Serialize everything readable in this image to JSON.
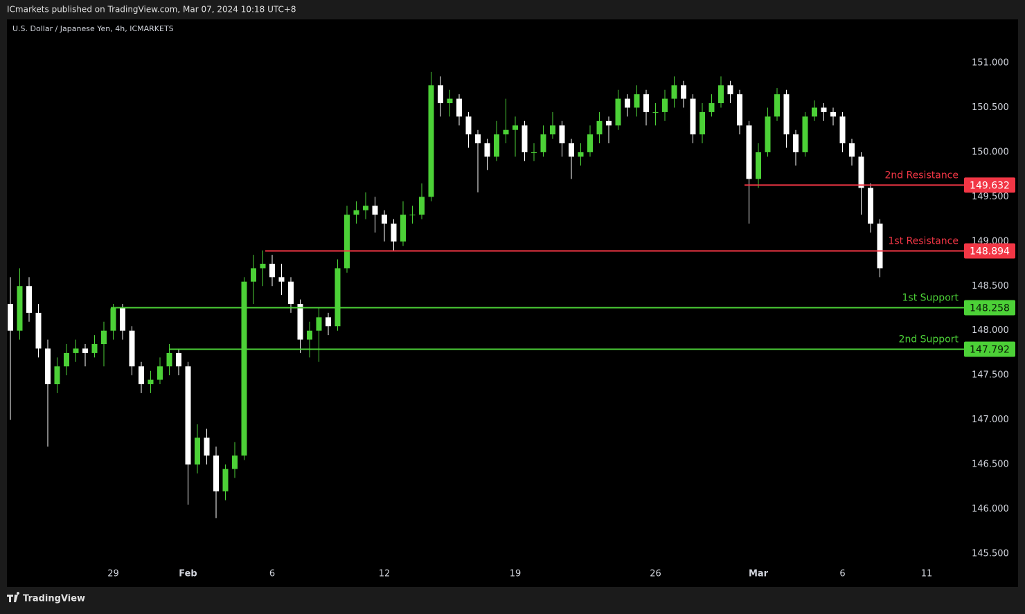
{
  "header": "ICmarkets published on TradingView.com, Mar 07, 2024 10:18 UTC+8",
  "footer": "TradingView",
  "chart_data": {
    "type": "candlestick",
    "title": "U.S. Dollar / Japanese Yen, 4h, ICMARKETS",
    "up_color": "#4cd137",
    "down_color": "#ffffff",
    "grid": false,
    "categories": [
      null,
      null,
      null,
      null,
      null,
      null,
      null,
      null,
      null,
      null,
      null,
      "29",
      null,
      null,
      null,
      null,
      null,
      null,
      null,
      "Feb",
      null,
      null,
      null,
      null,
      null,
      null,
      null,
      null,
      "6",
      null,
      null,
      null,
      null,
      null,
      null,
      null,
      null,
      null,
      null,
      null,
      "12",
      null,
      null,
      null,
      null,
      null,
      null,
      null,
      null,
      null,
      null,
      null,
      null,
      null,
      "19",
      null,
      null,
      null,
      null,
      null,
      null,
      null,
      null,
      null,
      null,
      null,
      null,
      null,
      null,
      "26",
      null,
      null,
      null,
      null,
      null,
      null,
      null,
      null,
      null,
      null,
      "Mar",
      null,
      null,
      null,
      null,
      null,
      null,
      null,
      null,
      "6",
      null,
      null,
      null,
      null,
      null,
      null,
      null,
      null,
      "11"
    ],
    "open": [
      148.3,
      148.0,
      148.5,
      148.2,
      147.8,
      147.4,
      147.6,
      147.75,
      147.8,
      147.75,
      147.85,
      148.0,
      148.25,
      148.0,
      147.6,
      147.4,
      147.45,
      147.6,
      147.75,
      147.6,
      146.5,
      146.8,
      146.6,
      146.2,
      146.45,
      146.6,
      148.55,
      148.7,
      148.75,
      148.6,
      148.55,
      148.3,
      147.9,
      148.0,
      148.15,
      148.05,
      148.7,
      149.3,
      149.35,
      149.4,
      149.3,
      149.2,
      149.0,
      149.3,
      149.3,
      149.5,
      150.75,
      150.55,
      150.6,
      150.4,
      150.2,
      150.1,
      149.95,
      150.2,
      150.25,
      150.3,
      150.0,
      150.0,
      150.2,
      150.3,
      150.1,
      149.95,
      150.0,
      150.2,
      150.35,
      150.3,
      150.6,
      150.5,
      150.65,
      150.45,
      150.45,
      150.6,
      150.75,
      150.6,
      150.2,
      150.45,
      150.55,
      150.75,
      150.65,
      150.3,
      149.7,
      150.0,
      150.4,
      150.65,
      150.2,
      150.0,
      150.4,
      150.5,
      150.45,
      150.4,
      150.1,
      149.95,
      149.6,
      149.2,
      null,
      null,
      null,
      null,
      null
    ],
    "high": [
      148.6,
      148.7,
      148.6,
      148.3,
      147.9,
      147.7,
      147.85,
      147.9,
      147.85,
      147.95,
      148.1,
      148.3,
      148.3,
      148.05,
      147.65,
      147.55,
      147.7,
      147.85,
      147.8,
      147.65,
      146.95,
      146.9,
      146.7,
      146.5,
      146.75,
      148.6,
      148.85,
      148.9,
      148.85,
      148.75,
      148.6,
      148.35,
      148.1,
      148.25,
      148.2,
      148.8,
      149.4,
      149.45,
      149.55,
      149.5,
      149.35,
      149.25,
      149.45,
      149.4,
      149.65,
      150.9,
      150.85,
      150.7,
      150.65,
      150.45,
      150.25,
      150.15,
      150.35,
      150.6,
      150.4,
      150.35,
      150.1,
      150.3,
      150.45,
      150.35,
      150.15,
      150.1,
      150.3,
      150.45,
      150.4,
      150.7,
      150.65,
      150.75,
      150.7,
      150.55,
      150.7,
      150.85,
      150.8,
      150.65,
      150.55,
      150.65,
      150.85,
      150.8,
      150.7,
      150.35,
      150.1,
      150.5,
      150.72,
      150.7,
      150.25,
      150.45,
      150.58,
      150.55,
      150.5,
      150.45,
      150.15,
      150.0,
      149.65,
      149.25,
      null,
      null,
      null,
      null,
      null
    ],
    "low": [
      147.0,
      147.9,
      148.1,
      147.7,
      146.7,
      147.3,
      147.5,
      147.65,
      147.6,
      147.7,
      147.6,
      147.9,
      147.9,
      147.5,
      147.3,
      147.3,
      147.4,
      147.5,
      147.5,
      146.05,
      146.4,
      146.5,
      145.9,
      146.1,
      146.35,
      146.55,
      148.3,
      148.5,
      148.5,
      148.4,
      148.2,
      147.75,
      147.7,
      147.65,
      147.95,
      148.0,
      148.65,
      149.2,
      149.25,
      149.1,
      149.0,
      148.9,
      148.95,
      149.2,
      149.25,
      149.45,
      150.4,
      150.4,
      150.3,
      150.05,
      149.55,
      149.8,
      149.9,
      150.1,
      149.95,
      149.9,
      149.9,
      149.95,
      150.15,
      149.95,
      149.7,
      149.85,
      149.95,
      150.1,
      150.1,
      150.25,
      150.4,
      150.4,
      150.3,
      150.3,
      150.35,
      150.5,
      150.5,
      150.1,
      150.1,
      150.4,
      150.5,
      150.55,
      150.2,
      149.2,
      149.6,
      149.95,
      150.35,
      150.05,
      149.85,
      149.95,
      150.35,
      150.35,
      150.3,
      150.0,
      149.85,
      149.3,
      149.1,
      148.6,
      null,
      null,
      null,
      null,
      null
    ],
    "close": [
      148.0,
      148.5,
      148.2,
      147.8,
      147.4,
      147.6,
      147.75,
      147.8,
      147.75,
      147.85,
      148.0,
      148.25,
      148.0,
      147.6,
      147.4,
      147.45,
      147.6,
      147.75,
      147.6,
      146.5,
      146.8,
      146.6,
      146.2,
      146.45,
      146.6,
      148.55,
      148.7,
      148.75,
      148.6,
      148.55,
      148.3,
      147.9,
      148.0,
      148.15,
      148.05,
      148.7,
      149.3,
      149.35,
      149.4,
      149.3,
      149.2,
      149.0,
      149.3,
      149.3,
      149.5,
      150.75,
      150.55,
      150.6,
      150.4,
      150.2,
      150.1,
      149.95,
      150.2,
      150.25,
      150.3,
      150.0,
      150.0,
      150.2,
      150.3,
      150.1,
      149.95,
      150.0,
      150.2,
      150.35,
      150.3,
      150.6,
      150.5,
      150.65,
      150.45,
      150.45,
      150.6,
      150.75,
      150.6,
      150.2,
      150.45,
      150.55,
      150.75,
      150.65,
      150.3,
      149.7,
      150.0,
      150.4,
      150.65,
      150.2,
      150.0,
      150.4,
      150.5,
      150.45,
      150.4,
      150.1,
      149.95,
      149.6,
      149.2,
      148.7,
      null,
      null,
      null,
      null,
      null
    ],
    "ylim": [
      145.383,
      151.489
    ],
    "yticks": [
      {
        "value": 145.5,
        "label": "145.500"
      },
      {
        "value": 146,
        "label": "146.000"
      },
      {
        "value": 146.5,
        "label": "146.500"
      },
      {
        "value": 147,
        "label": "147.000"
      },
      {
        "value": 147.5,
        "label": "147.500"
      },
      {
        "value": 148,
        "label": "148.000"
      },
      {
        "value": 148.5,
        "label": "148.500"
      },
      {
        "value": 149,
        "label": "149.000"
      },
      {
        "value": 149.5,
        "label": "149.500"
      },
      {
        "value": 150,
        "label": "150.000"
      },
      {
        "value": 150.5,
        "label": "150.500"
      },
      {
        "value": 151,
        "label": "151.000"
      }
    ],
    "levels": [
      {
        "name": "2nd Resistance",
        "value": 149.632,
        "color": "#f23645"
      },
      {
        "name": "1st Resistance",
        "value": 148.894,
        "color": "#f23645"
      },
      {
        "name": "1st Support",
        "value": 148.258,
        "color": "#4cd137"
      },
      {
        "name": "2nd Support",
        "value": 147.792,
        "color": "#4cd137"
      }
    ]
  }
}
